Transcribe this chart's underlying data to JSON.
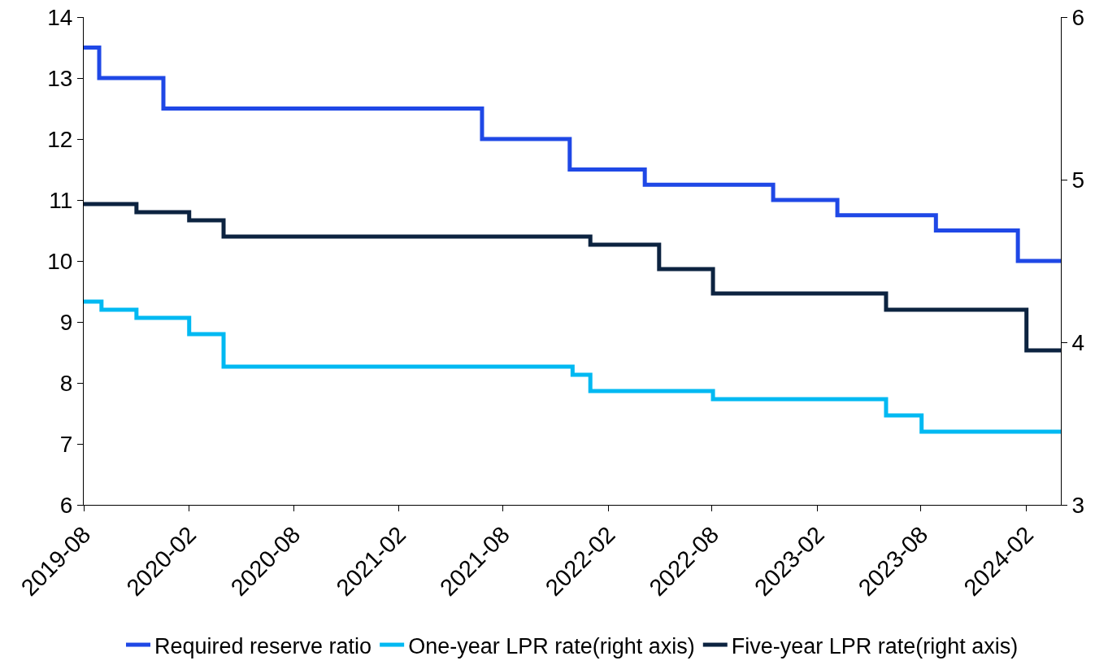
{
  "chart_data": {
    "type": "step",
    "series": [
      {
        "name": "Required reserve ratio",
        "color": "#1f48e6",
        "x": [
          "2019-08-20",
          "2019-09-16",
          "2020-01-06",
          "2021-07-15",
          "2021-12-15",
          "2022-04-25",
          "2022-12-05",
          "2023-03-27",
          "2023-09-15",
          "2024-02-05",
          "2024-04-20"
        ],
        "values": [
          13.5,
          13.0,
          12.5,
          12.0,
          11.5,
          11.25,
          11.0,
          10.75,
          10.5,
          10.0,
          10.0
        ]
      },
      {
        "name": "One-year LPR rate(right axis)",
        "color": "#00b9f2",
        "axis": "y2",
        "x": [
          "2019-08-20",
          "2019-09-20",
          "2019-11-20",
          "2020-02-20",
          "2020-04-20",
          "2021-12-20",
          "2022-01-20",
          "2022-08-22",
          "2023-06-20",
          "2023-08-21",
          "2024-04-20"
        ],
        "values": [
          4.25,
          4.2,
          4.15,
          4.05,
          3.85,
          3.8,
          3.7,
          3.65,
          3.55,
          3.45,
          3.45
        ]
      },
      {
        "name": "Five-year LPR rate(right axis)",
        "color": "#0c2340",
        "axis": "y2",
        "x": [
          "2019-08-20",
          "2019-11-20",
          "2020-02-20",
          "2020-04-20",
          "2022-01-20",
          "2022-05-20",
          "2022-08-22",
          "2023-06-20",
          "2024-02-20",
          "2024-04-20"
        ],
        "values": [
          4.85,
          4.8,
          4.75,
          4.65,
          4.6,
          4.45,
          4.3,
          4.2,
          3.95,
          3.95
        ]
      }
    ],
    "xlim": [
      "2019-08-20",
      "2024-04-20"
    ],
    "xticks": [
      {
        "value": "2019-08-20",
        "label": "2019-08"
      },
      {
        "value": "2020-02-20",
        "label": "2020-02"
      },
      {
        "value": "2020-08-20",
        "label": "2020-08"
      },
      {
        "value": "2021-02-20",
        "label": "2021-02"
      },
      {
        "value": "2021-08-20",
        "label": "2021-08"
      },
      {
        "value": "2022-02-20",
        "label": "2022-02"
      },
      {
        "value": "2022-08-20",
        "label": "2022-08"
      },
      {
        "value": "2023-02-20",
        "label": "2023-02"
      },
      {
        "value": "2023-08-20",
        "label": "2023-08"
      },
      {
        "value": "2024-02-20",
        "label": "2024-02"
      }
    ],
    "ylim": [
      6,
      14
    ],
    "yticks": [
      6,
      7,
      8,
      9,
      10,
      11,
      12,
      13,
      14
    ],
    "y2lim": [
      3,
      6
    ],
    "y2ticks": [
      3,
      4,
      5,
      6
    ],
    "legend": "bottom",
    "line_style": "solid"
  }
}
